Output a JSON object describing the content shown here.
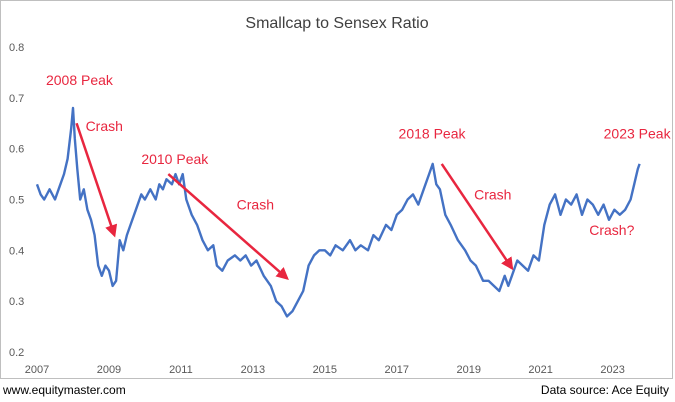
{
  "chart_data": {
    "type": "line",
    "title": "Smallcap to Sensex Ratio",
    "xlabel": "",
    "ylabel": "",
    "xlim": [
      2007,
      2023.9
    ],
    "ylim": [
      0.2,
      0.8
    ],
    "x_ticks": [
      "2007",
      "2009",
      "2011",
      "2013",
      "2015",
      "2017",
      "2019",
      "2021",
      "2023"
    ],
    "y_ticks": [
      "0.2",
      "0.3",
      "0.4",
      "0.5",
      "0.6",
      "0.7",
      "0.8"
    ],
    "grid": false,
    "line_color": "#4472c4",
    "annotation_color": "#e8263f",
    "series": [
      {
        "x": [
          2007.0,
          2007.1,
          2007.2,
          2007.35,
          2007.5,
          2007.6,
          2007.75,
          2007.85,
          2007.95,
          2008.0,
          2008.05,
          2008.12,
          2008.2,
          2008.3,
          2008.4,
          2008.5,
          2008.6,
          2008.7,
          2008.8,
          2008.9,
          2009.0,
          2009.1,
          2009.2,
          2009.3,
          2009.4,
          2009.5,
          2009.6,
          2009.75,
          2009.9,
          2010.0,
          2010.15,
          2010.3,
          2010.4,
          2010.5,
          2010.6,
          2010.75,
          2010.85,
          2010.95,
          2011.05,
          2011.15,
          2011.3,
          2011.45,
          2011.6,
          2011.75,
          2011.9,
          2012.0,
          2012.15,
          2012.3,
          2012.5,
          2012.65,
          2012.8,
          2012.95,
          2013.1,
          2013.3,
          2013.5,
          2013.65,
          2013.8,
          2013.95,
          2014.1,
          2014.25,
          2014.4,
          2014.55,
          2014.7,
          2014.85,
          2015.0,
          2015.15,
          2015.3,
          2015.5,
          2015.7,
          2015.85,
          2016.0,
          2016.2,
          2016.35,
          2016.5,
          2016.7,
          2016.85,
          2017.0,
          2017.15,
          2017.3,
          2017.45,
          2017.6,
          2017.75,
          2017.9,
          2018.0,
          2018.1,
          2018.2,
          2018.35,
          2018.5,
          2018.7,
          2018.9,
          2019.05,
          2019.2,
          2019.4,
          2019.55,
          2019.7,
          2019.85,
          2020.0,
          2020.1,
          2020.2,
          2020.35,
          2020.5,
          2020.65,
          2020.8,
          2020.95,
          2021.1,
          2021.25,
          2021.4,
          2021.55,
          2021.7,
          2021.85,
          2022.0,
          2022.15,
          2022.3,
          2022.45,
          2022.6,
          2022.75,
          2022.9,
          2023.05,
          2023.2,
          2023.35,
          2023.5,
          2023.6,
          2023.7,
          2023.75
        ],
        "y": [
          0.53,
          0.51,
          0.5,
          0.52,
          0.5,
          0.52,
          0.55,
          0.58,
          0.64,
          0.68,
          0.62,
          0.56,
          0.5,
          0.52,
          0.48,
          0.46,
          0.43,
          0.37,
          0.35,
          0.37,
          0.36,
          0.33,
          0.34,
          0.42,
          0.4,
          0.43,
          0.45,
          0.48,
          0.51,
          0.5,
          0.52,
          0.5,
          0.53,
          0.52,
          0.54,
          0.53,
          0.55,
          0.53,
          0.55,
          0.5,
          0.47,
          0.45,
          0.42,
          0.4,
          0.41,
          0.37,
          0.36,
          0.38,
          0.39,
          0.38,
          0.39,
          0.37,
          0.38,
          0.35,
          0.33,
          0.3,
          0.29,
          0.27,
          0.28,
          0.3,
          0.32,
          0.37,
          0.39,
          0.4,
          0.4,
          0.39,
          0.41,
          0.4,
          0.42,
          0.4,
          0.41,
          0.4,
          0.43,
          0.42,
          0.45,
          0.44,
          0.47,
          0.48,
          0.5,
          0.51,
          0.49,
          0.52,
          0.55,
          0.57,
          0.53,
          0.52,
          0.47,
          0.45,
          0.42,
          0.4,
          0.38,
          0.37,
          0.34,
          0.34,
          0.33,
          0.32,
          0.35,
          0.33,
          0.35,
          0.38,
          0.37,
          0.36,
          0.39,
          0.38,
          0.45,
          0.49,
          0.51,
          0.47,
          0.5,
          0.49,
          0.51,
          0.47,
          0.5,
          0.49,
          0.47,
          0.49,
          0.46,
          0.48,
          0.47,
          0.48,
          0.5,
          0.53,
          0.56,
          0.57
        ]
      }
    ],
    "annotations": [
      {
        "text": "2008 Peak",
        "x": 2007.25,
        "y": 0.725
      },
      {
        "text": "Crash",
        "x": 2008.35,
        "y": 0.635
      },
      {
        "text": "2010 Peak",
        "x": 2009.9,
        "y": 0.57
      },
      {
        "text": "Crash",
        "x": 2012.55,
        "y": 0.48
      },
      {
        "text": "2018 Peak",
        "x": 2017.05,
        "y": 0.62
      },
      {
        "text": "Crash",
        "x": 2019.15,
        "y": 0.5
      },
      {
        "text": "2023 Peak",
        "x": 2022.75,
        "y": 0.62
      },
      {
        "text": "Crash?",
        "x": 2022.35,
        "y": 0.43
      }
    ],
    "arrows": [
      {
        "from": [
          2008.1,
          0.65
        ],
        "to": [
          2009.15,
          0.43
        ]
      },
      {
        "from": [
          2010.65,
          0.55
        ],
        "to": [
          2013.95,
          0.345
        ]
      },
      {
        "from": [
          2018.25,
          0.57
        ],
        "to": [
          2020.2,
          0.365
        ]
      }
    ]
  },
  "footer": {
    "left": "www.equitymaster.com",
    "right": "Data source: Ace Equity"
  }
}
